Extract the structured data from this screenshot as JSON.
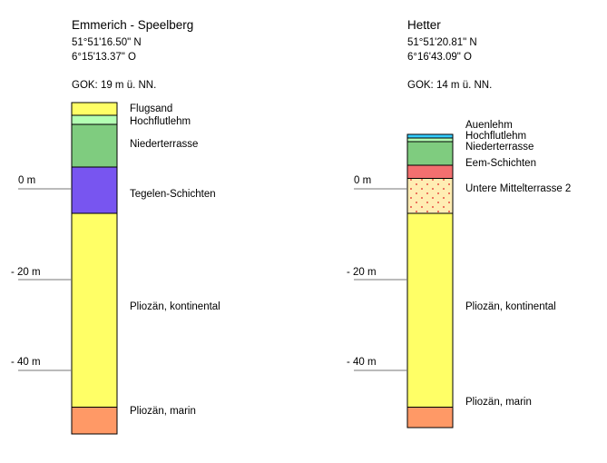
{
  "profiles": [
    {
      "name": "Emmerich - Speelberg",
      "lat": "51°51'16.50\" N",
      "lon": "6°15'13.37\" O",
      "gok": "GOK: 19 m ü. NN.",
      "gok_m": 19,
      "bottom_m": -54,
      "layers": [
        {
          "name": "Flugsand",
          "top_m": 19,
          "bottom_m": 16.2,
          "color": "#ffff66"
        },
        {
          "name": "Hochflutlehm",
          "top_m": 16.2,
          "bottom_m": 14.2,
          "color": "#b3ffb3"
        },
        {
          "name": "Niederterrasse",
          "top_m": 14.2,
          "bottom_m": 4.8,
          "color": "#7fcc7f"
        },
        {
          "name": "Tegelen-Schichten",
          "top_m": 4.8,
          "bottom_m": -5.4,
          "color": "#7855f0"
        },
        {
          "name": "Pliozän, kontinental",
          "top_m": -5.4,
          "bottom_m": -48.1,
          "color": "#ffff66"
        },
        {
          "name": "Pliozän, marin",
          "top_m": -48.1,
          "bottom_m": -54,
          "color": "#ff9966"
        }
      ],
      "depth_labels": [
        {
          "label": "0 m",
          "m": 0
        },
        {
          "label": "- 20 m",
          "m": -20
        },
        {
          "label": "- 40 m",
          "m": -40
        }
      ]
    },
    {
      "name": "Hetter",
      "lat": "51°51'20.81\" N",
      "lon": "6°16'43.09\" O",
      "gok": "GOK: 14 m ü. NN.",
      "gok_m": 14,
      "bottom_m": -52.6,
      "layers": [
        {
          "name": "Auenlehm",
          "top_m": 12,
          "bottom_m": 11.2,
          "color": "#33ccff"
        },
        {
          "name": "Hochflutlehm",
          "top_m": 11.2,
          "bottom_m": 10.4,
          "color": "#b3ffb3"
        },
        {
          "name": "Niederterrasse",
          "top_m": 10.4,
          "bottom_m": 5.2,
          "color": "#7fcc7f"
        },
        {
          "name": "Eem-Schichten",
          "top_m": 5.2,
          "bottom_m": 2.3,
          "color": "#f26f6f"
        },
        {
          "name": "Untere Mittelterrasse 2",
          "top_m": 2.3,
          "bottom_m": -5.4,
          "color": "#ffedb3",
          "pattern": "dots"
        },
        {
          "name": "Pliozän, kontinental",
          "top_m": -5.4,
          "bottom_m": -48.1,
          "color": "#ffff66"
        },
        {
          "name": "Pliozän, marin",
          "top_m": -48.1,
          "bottom_m": -52.6,
          "color": "#ff9966"
        }
      ],
      "depth_labels": [
        {
          "label": "0 m",
          "m": 0
        },
        {
          "label": "- 20 m",
          "m": -20
        },
        {
          "label": "- 40 m",
          "m": -40
        }
      ]
    }
  ]
}
